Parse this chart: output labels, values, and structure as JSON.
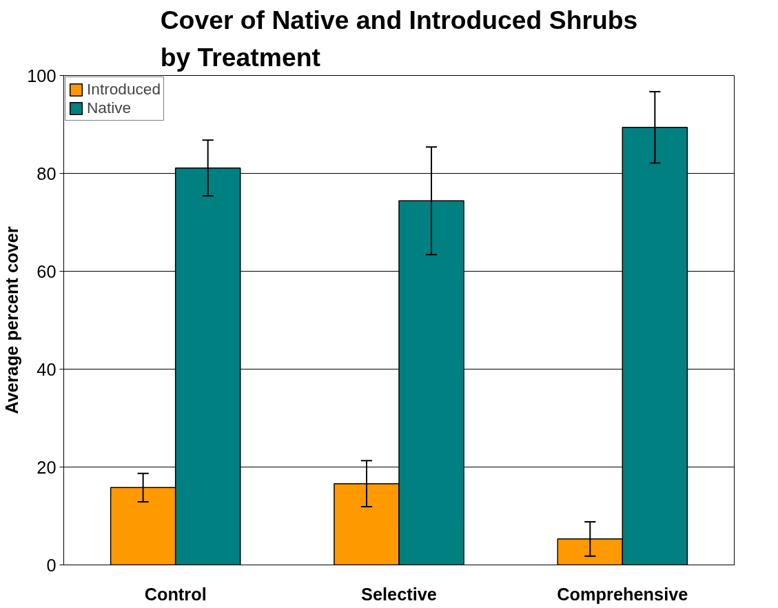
{
  "chart_data": {
    "type": "bar",
    "title": "Cover of Native and Introduced Shrubs\nby Treatment",
    "ylabel": "Average percent cover",
    "categories": [
      "Control",
      "Selective",
      "Comprehensive"
    ],
    "series": [
      {
        "name": "Introduced",
        "color": "#ff9900",
        "values": [
          15.8,
          16.6,
          5.3
        ],
        "errors": [
          2.9,
          4.7,
          3.5
        ]
      },
      {
        "name": "Native",
        "color": "#008080",
        "values": [
          81.1,
          74.4,
          89.4
        ],
        "errors": [
          5.7,
          11,
          7.3
        ]
      }
    ],
    "ylim": [
      0,
      100
    ],
    "yticks": [
      0,
      20,
      40,
      60,
      80,
      100
    ],
    "grid": "y",
    "legend": "top left"
  }
}
